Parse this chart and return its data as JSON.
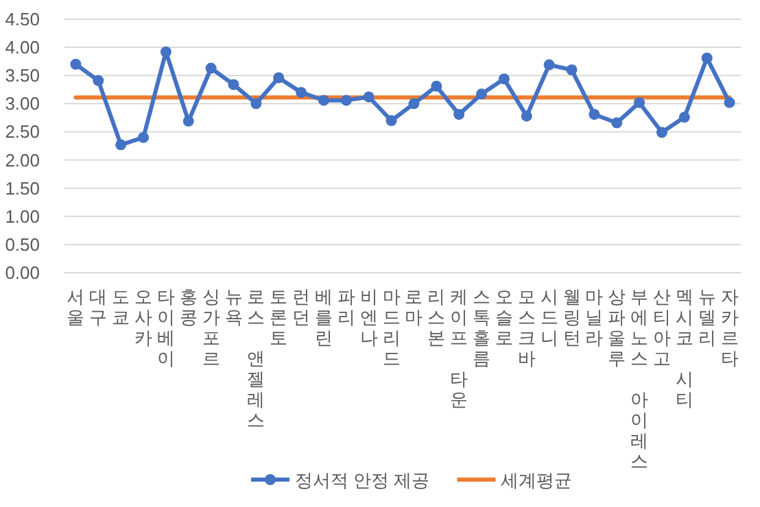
{
  "chart_data": {
    "type": "line",
    "categories": [
      "서울",
      "대구",
      "도쿄",
      "오사카",
      "타이베이",
      "홍콩",
      "싱가포르",
      "뉴욕",
      "로스 앤젤레스",
      "토론토",
      "런던",
      "베를린",
      "파리",
      "비엔나",
      "마드리드",
      "로마",
      "리스본",
      "케이프 타운",
      "스톡홀름",
      "오슬로",
      "모스크바",
      "시드니",
      "웰링턴",
      "마닐라",
      "상파울루",
      "부에노스 아이레스",
      "산티아고",
      "멕시코 시티",
      "뉴델리",
      "자카르타"
    ],
    "series": [
      {
        "name": "정서적 안정 제공",
        "color": "#4472c4",
        "marker": "circle",
        "values": [
          3.7,
          3.41,
          2.27,
          2.4,
          3.92,
          2.69,
          3.63,
          3.34,
          3.0,
          3.46,
          3.2,
          3.06,
          3.06,
          3.12,
          2.7,
          3.0,
          3.31,
          2.81,
          3.17,
          3.44,
          2.78,
          3.69,
          3.6,
          2.81,
          2.66,
          3.02,
          2.49,
          2.76,
          3.81,
          3.02
        ]
      },
      {
        "name": "세계평균",
        "color": "#ed7d31",
        "marker": "none",
        "values": [
          3.11,
          3.11,
          3.11,
          3.11,
          3.11,
          3.11,
          3.11,
          3.11,
          3.11,
          3.11,
          3.11,
          3.11,
          3.11,
          3.11,
          3.11,
          3.11,
          3.11,
          3.11,
          3.11,
          3.11,
          3.11,
          3.11,
          3.11,
          3.11,
          3.11,
          3.11,
          3.11,
          3.11,
          3.11,
          3.11
        ]
      }
    ],
    "ylim": [
      0,
      4.5
    ],
    "yticks": [
      {
        "value": 0,
        "label": "0.00"
      },
      {
        "value": 0.5,
        "label": "0.50"
      },
      {
        "value": 1,
        "label": "1.00"
      },
      {
        "value": 1.5,
        "label": "1.50"
      },
      {
        "value": 2,
        "label": "2.00"
      },
      {
        "value": 2.5,
        "label": "2.50"
      },
      {
        "value": 3,
        "label": "3.00"
      },
      {
        "value": 3.5,
        "label": "3.50"
      },
      {
        "value": 4,
        "label": "4.00"
      },
      {
        "value": 4.5,
        "label": "4.50"
      }
    ],
    "grid": "y",
    "legend": "bottom"
  }
}
